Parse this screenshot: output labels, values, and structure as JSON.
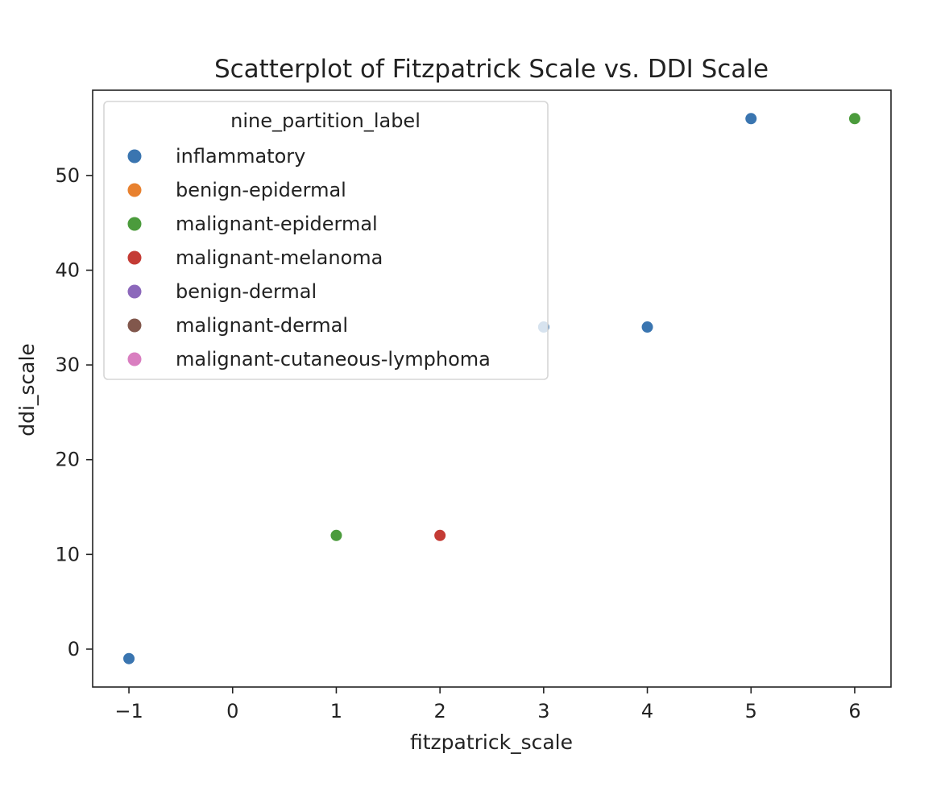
{
  "chart_data": {
    "type": "scatter",
    "title": "Scatterplot of Fitzpatrick Scale vs. DDI Scale",
    "xlabel": "fitzpatrick_scale",
    "ylabel": "ddi_scale",
    "xlim": [
      -1.35,
      6.35
    ],
    "ylim": [
      -4,
      59
    ],
    "xticks": [
      -1,
      0,
      1,
      2,
      3,
      4,
      5,
      6
    ],
    "xtick_labels": [
      "−1",
      "0",
      "1",
      "2",
      "3",
      "4",
      "5",
      "6"
    ],
    "yticks": [
      0,
      10,
      20,
      30,
      40,
      50
    ],
    "ytick_labels": [
      "0",
      "10",
      "20",
      "30",
      "40",
      "50"
    ],
    "grid": false,
    "legend": {
      "title": "nine_partition_label",
      "placement": "upper-left"
    },
    "series": [
      {
        "name": "inflammatory",
        "color": "#3a75b0",
        "points": [
          {
            "x": -1,
            "y": -1
          },
          {
            "x": 3,
            "y": 34
          },
          {
            "x": 4,
            "y": 34
          },
          {
            "x": 5,
            "y": 56
          }
        ]
      },
      {
        "name": "benign-epidermal",
        "color": "#e8812f",
        "points": []
      },
      {
        "name": "malignant-epidermal",
        "color": "#4b9b3c",
        "points": [
          {
            "x": 1,
            "y": 12
          },
          {
            "x": 6,
            "y": 56
          }
        ]
      },
      {
        "name": "malignant-melanoma",
        "color": "#c43b35",
        "points": [
          {
            "x": 2,
            "y": 12
          }
        ]
      },
      {
        "name": "benign-dermal",
        "color": "#8c68bb",
        "points": []
      },
      {
        "name": "malignant-dermal",
        "color": "#81574c",
        "points": []
      },
      {
        "name": "malignant-cutaneous-lymphoma",
        "color": "#d97ec0",
        "points": []
      }
    ]
  }
}
